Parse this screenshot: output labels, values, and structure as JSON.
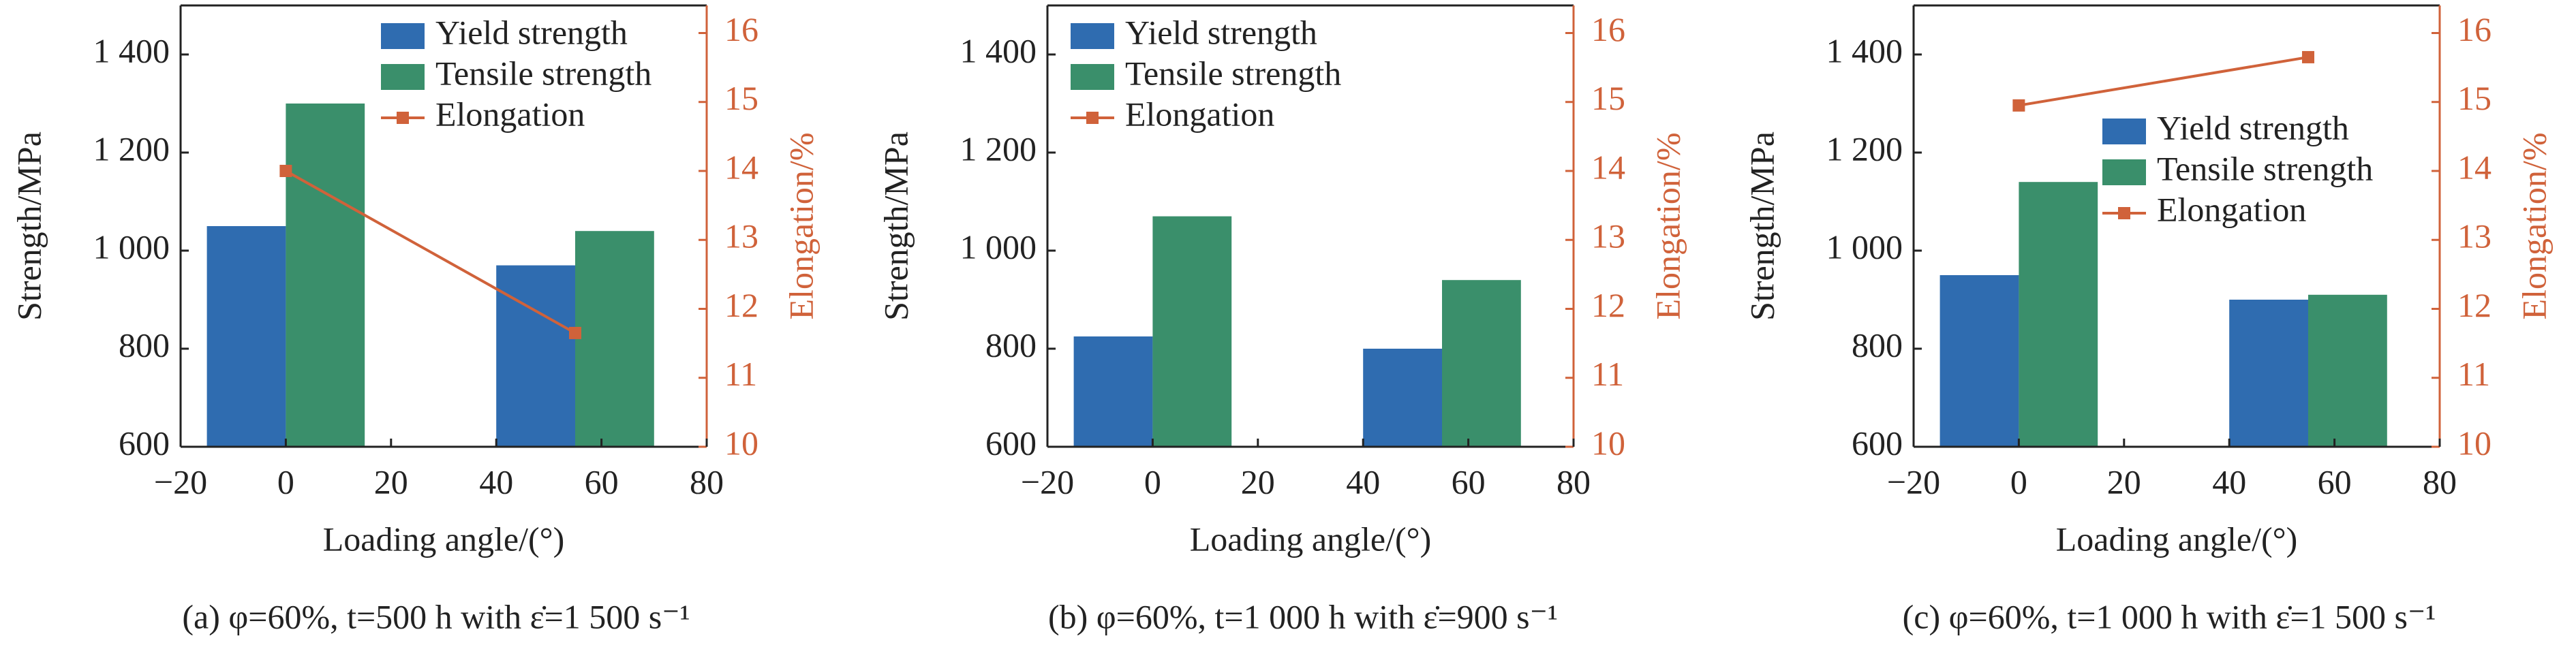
{
  "chart_data": [
    {
      "type": "bar",
      "caption": "(a) φ=60%, t=500 h with ε̇=1 500 s⁻¹",
      "xlabel": "Loading angle/(°)",
      "ylabel": "Strength/MPa",
      "y2label": "Elongation/%",
      "x": [
        0,
        55
      ],
      "legend": "upper right",
      "series": [
        {
          "name": "Yield strength",
          "color": "#2f6cb0",
          "values": [
            1050,
            970
          ]
        },
        {
          "name": "Tensile strength",
          "color": "#3a8f6b",
          "values": [
            1300,
            1040
          ]
        },
        {
          "name": "Elongation",
          "color": "#d0623a",
          "axis": "y2",
          "values": [
            14.0,
            11.65
          ]
        }
      ],
      "xlim": [
        -20,
        80
      ],
      "xticks": [
        {
          "value": -20,
          "label": "−20"
        },
        0,
        20,
        40,
        60,
        80
      ],
      "ylim": [
        600,
        1500
      ],
      "yticks": [
        600,
        800,
        {
          "value": 1000,
          "label": "1 000"
        },
        {
          "value": 1200,
          "label": "1 200"
        },
        {
          "value": 1400,
          "label": "1 400"
        }
      ],
      "y2lim": [
        10,
        16.4
      ],
      "y2ticks": [
        10,
        11,
        12,
        13,
        14,
        15,
        16
      ]
    },
    {
      "type": "bar",
      "caption": "(b) φ=60%, t=1 000 h with ε̇=900 s⁻¹",
      "xlabel": "Loading angle/(°)",
      "ylabel": "Strength/MPa",
      "y2label": "Elongation/%",
      "x": [
        0,
        55
      ],
      "legend": "upper left",
      "series": [
        {
          "name": "Yield strength",
          "color": "#2f6cb0",
          "values": [
            825,
            800
          ]
        },
        {
          "name": "Tensile strength",
          "color": "#3a8f6b",
          "values": [
            1070,
            940
          ]
        },
        {
          "name": "Elongation",
          "color": "#d0623a",
          "axis": "y2",
          "values": [
            null,
            null
          ]
        }
      ],
      "xlim": [
        -20,
        80
      ],
      "xticks": [
        {
          "value": -20,
          "label": "−20"
        },
        0,
        20,
        40,
        60,
        80
      ],
      "ylim": [
        600,
        1500
      ],
      "yticks": [
        600,
        800,
        {
          "value": 1000,
          "label": "1 000"
        },
        {
          "value": 1200,
          "label": "1 200"
        },
        {
          "value": 1400,
          "label": "1 400"
        }
      ],
      "y2lim": [
        10,
        16.4
      ],
      "y2ticks": [
        10,
        11,
        12,
        13,
        14,
        15,
        16
      ]
    },
    {
      "type": "bar",
      "caption": "(c) φ=60%, t=1 000 h with ε̇=1 500 s⁻¹",
      "xlabel": "Loading angle/(°)",
      "ylabel": "Strength/MPa",
      "y2label": "Elongation/%",
      "x": [
        0,
        55
      ],
      "legend": "center right",
      "series": [
        {
          "name": "Yield strength",
          "color": "#2f6cb0",
          "values": [
            950,
            900
          ]
        },
        {
          "name": "Tensile strength",
          "color": "#3a8f6b",
          "values": [
            1140,
            910
          ]
        },
        {
          "name": "Elongation",
          "color": "#d0623a",
          "axis": "y2",
          "values": [
            14.95,
            15.65
          ]
        }
      ],
      "xlim": [
        -20,
        80
      ],
      "xticks": [
        {
          "value": -20,
          "label": "−20"
        },
        0,
        20,
        40,
        60,
        80
      ],
      "ylim": [
        600,
        1500
      ],
      "yticks": [
        600,
        800,
        {
          "value": 1000,
          "label": "1 000"
        },
        {
          "value": 1200,
          "label": "1 200"
        },
        {
          "value": 1400,
          "label": "1 400"
        }
      ],
      "y2lim": [
        10,
        16.4
      ],
      "y2ticks": [
        10,
        11,
        12,
        13,
        14,
        15,
        16
      ]
    }
  ]
}
